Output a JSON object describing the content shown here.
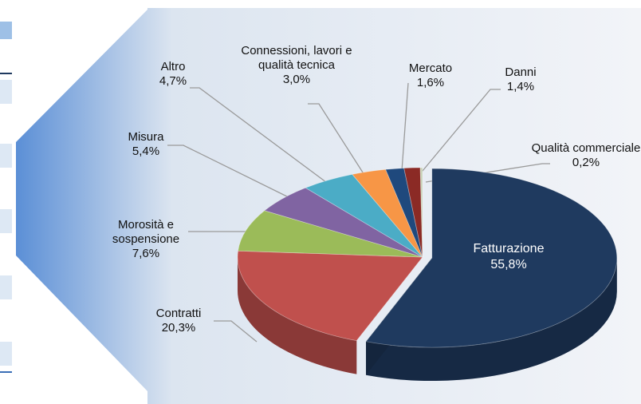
{
  "chart_data": {
    "type": "pie",
    "categories": [
      "Fatturazione",
      "Contratti",
      "Morosità e sospensione",
      "Misura",
      "Altro",
      "Connessioni, lavori e qualità tecnica",
      "Mercato",
      "Danni",
      "Qualità commerciale"
    ],
    "values": [
      55.8,
      20.3,
      7.6,
      5.4,
      4.7,
      3.0,
      1.6,
      1.4,
      0.2
    ],
    "value_labels": [
      "55,8%",
      "20,3%",
      "7,6%",
      "5,4%",
      "4,7%",
      "3,0%",
      "1,6%",
      "1,4%",
      "0,2%"
    ],
    "colors": [
      "#1f3a5f",
      "#c0504d",
      "#9bbb59",
      "#8064a2",
      "#4bacc6",
      "#f79646",
      "#1f497d",
      "#8b2a25",
      "#c8d2b8"
    ]
  }
}
